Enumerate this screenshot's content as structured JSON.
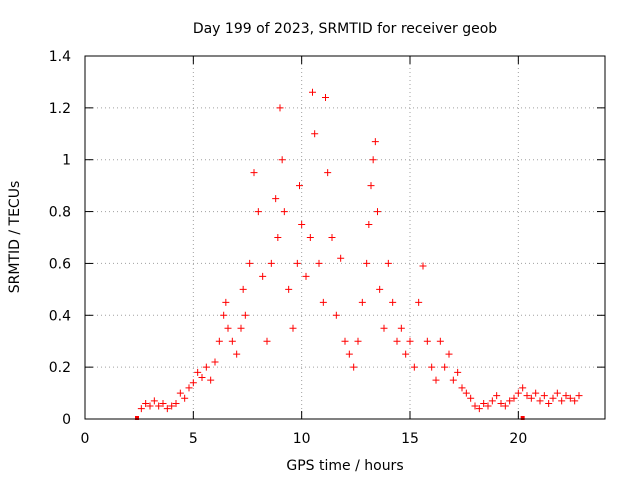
{
  "chart_data": {
    "type": "scatter",
    "title": "Day 199 of 2023, SRMTID for receiver geob",
    "xlabel": "GPS time / hours",
    "ylabel": "SRMTID / TECUs",
    "xlim": [
      0,
      24
    ],
    "ylim": [
      0,
      1.4
    ],
    "xticks": [
      0,
      5,
      10,
      15,
      20
    ],
    "xtick_labels": [
      "0",
      "5",
      "10",
      "15",
      "20"
    ],
    "yticks": [
      0,
      0.2,
      0.4,
      0.6,
      0.8,
      1.0,
      1.2,
      1.4
    ],
    "ytick_labels": [
      "0",
      "0.2",
      "0.4",
      "0.6",
      "0.8",
      "1",
      "1.2",
      "1.4"
    ],
    "grid": true,
    "marker": "+",
    "color": "#ff0000",
    "axis_markers": [
      2.4,
      20.2
    ],
    "series": [
      {
        "name": "SRMTID",
        "x": [
          2.6,
          2.8,
          3.0,
          3.2,
          3.4,
          3.6,
          3.8,
          4.0,
          4.2,
          4.4,
          4.6,
          4.8,
          5.0,
          5.2,
          5.4,
          5.6,
          5.8,
          6.0,
          6.2,
          6.4,
          6.5,
          6.6,
          6.8,
          7.0,
          7.2,
          7.3,
          7.4,
          7.6,
          7.8,
          8.0,
          8.2,
          8.4,
          8.6,
          8.8,
          8.9,
          9.0,
          9.1,
          9.2,
          9.4,
          9.6,
          9.8,
          9.9,
          10.0,
          10.2,
          10.4,
          10.5,
          10.6,
          10.8,
          11.0,
          11.1,
          11.2,
          11.4,
          11.6,
          11.8,
          12.0,
          12.2,
          12.4,
          12.6,
          12.8,
          13.0,
          13.1,
          13.2,
          13.3,
          13.4,
          13.5,
          13.6,
          13.8,
          14.0,
          14.2,
          14.4,
          14.6,
          14.8,
          15.0,
          15.2,
          15.4,
          15.6,
          15.8,
          16.0,
          16.2,
          16.4,
          16.6,
          16.8,
          17.0,
          17.2,
          17.4,
          17.6,
          17.8,
          18.0,
          18.2,
          18.4,
          18.6,
          18.8,
          19.0,
          19.2,
          19.4,
          19.6,
          19.8,
          20.0,
          20.2,
          20.4,
          20.6,
          20.8,
          21.0,
          21.2,
          21.4,
          21.6,
          21.8,
          22.0,
          22.2,
          22.4,
          22.6,
          22.8
        ],
        "y": [
          0.04,
          0.06,
          0.05,
          0.07,
          0.05,
          0.06,
          0.04,
          0.05,
          0.06,
          0.1,
          0.08,
          0.12,
          0.14,
          0.18,
          0.16,
          0.2,
          0.15,
          0.22,
          0.3,
          0.4,
          0.45,
          0.35,
          0.3,
          0.25,
          0.35,
          0.5,
          0.4,
          0.6,
          0.95,
          0.8,
          0.55,
          0.3,
          0.6,
          0.85,
          0.7,
          1.2,
          1.0,
          0.8,
          0.5,
          0.35,
          0.6,
          0.9,
          0.75,
          0.55,
          0.7,
          1.26,
          1.1,
          0.6,
          0.45,
          1.24,
          0.95,
          0.7,
          0.4,
          0.62,
          0.3,
          0.25,
          0.2,
          0.3,
          0.45,
          0.6,
          0.75,
          0.9,
          1.0,
          1.07,
          0.8,
          0.5,
          0.35,
          0.6,
          0.45,
          0.3,
          0.35,
          0.25,
          0.3,
          0.2,
          0.45,
          0.59,
          0.3,
          0.2,
          0.15,
          0.3,
          0.2,
          0.25,
          0.15,
          0.18,
          0.12,
          0.1,
          0.08,
          0.05,
          0.04,
          0.06,
          0.05,
          0.07,
          0.09,
          0.06,
          0.05,
          0.07,
          0.08,
          0.1,
          0.12,
          0.09,
          0.08,
          0.1,
          0.07,
          0.09,
          0.06,
          0.08,
          0.1,
          0.07,
          0.09,
          0.08,
          0.07,
          0.09
        ]
      }
    ]
  }
}
